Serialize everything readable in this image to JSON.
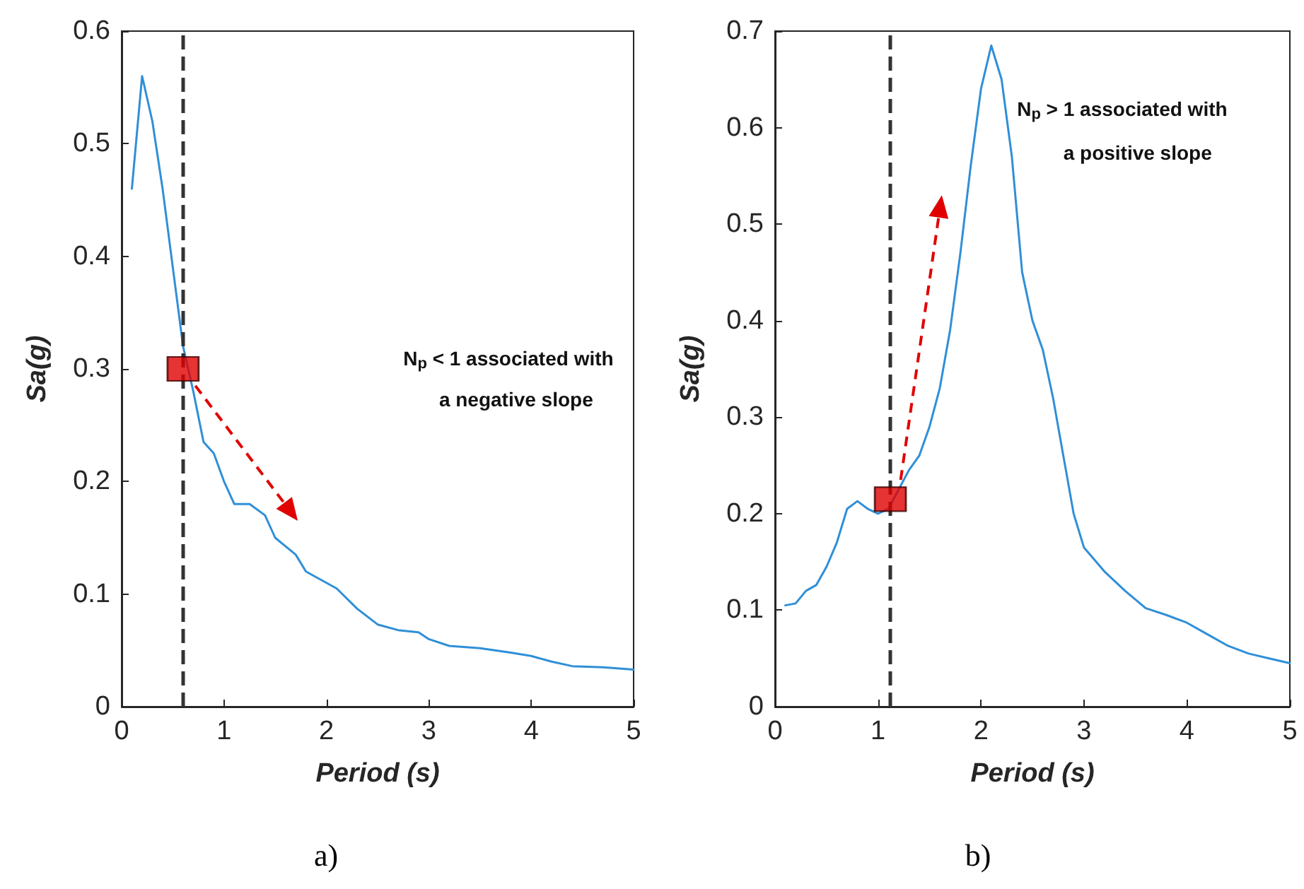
{
  "chart_data": [
    {
      "type": "line",
      "title": "a)",
      "xlabel": "Period (s)",
      "ylabel": "Sa(g)",
      "xlim": [
        0,
        5
      ],
      "xticks": [
        0,
        1,
        2,
        3,
        4,
        5
      ],
      "ylim": [
        0,
        0.6
      ],
      "yticks": [
        0,
        0.1,
        0.2,
        0.3,
        0.4,
        0.5,
        0.6
      ],
      "grid": false,
      "annotations": [
        "N$_{p}$ < 1 associated with",
        "a negative slope"
      ],
      "series": [
        {
          "type": "line",
          "color": "#2f8fd8",
          "marker": "none",
          "line_style": "solid",
          "x": [
            0.1,
            0.2,
            0.3,
            0.4,
            0.5,
            0.6,
            0.7,
            0.8,
            0.9,
            1.0,
            1.1,
            1.25,
            1.4,
            1.5,
            1.7,
            1.8,
            2.0,
            2.1,
            2.3,
            2.5,
            2.7,
            2.9,
            3.0,
            3.2,
            3.5,
            3.8,
            4.0,
            4.2,
            4.4,
            4.7,
            5.0
          ],
          "values": [
            0.46,
            0.56,
            0.52,
            0.46,
            0.39,
            0.32,
            0.28,
            0.235,
            0.225,
            0.2,
            0.18,
            0.18,
            0.17,
            0.15,
            0.135,
            0.12,
            0.11,
            0.105,
            0.087,
            0.073,
            0.068,
            0.066,
            0.06,
            0.054,
            0.052,
            0.048,
            0.045,
            0.04,
            0.036,
            0.035,
            0.033
          ]
        },
        {
          "type": "scatter",
          "color": "#e00000",
          "marker": "square",
          "x": [
            0.6
          ],
          "values": [
            0.3
          ]
        }
      ],
      "ref_lines": [
        {
          "axis": "x",
          "value": 0.6,
          "color": "#333333",
          "line_style": "dashed"
        }
      ]
    },
    {
      "type": "line",
      "title": "b)",
      "xlabel": "Period (s)",
      "ylabel": "Sa(g)",
      "xlim": [
        0,
        5
      ],
      "xticks": [
        0,
        1,
        2,
        3,
        4,
        5
      ],
      "ylim": [
        0,
        0.7
      ],
      "yticks": [
        0,
        0.1,
        0.2,
        0.3,
        0.4,
        0.5,
        0.6,
        0.7
      ],
      "grid": false,
      "annotations": [
        "N$_{p}$ > 1 associated with",
        "a positive slope"
      ],
      "series": [
        {
          "type": "line",
          "color": "#2f8fd8",
          "marker": "none",
          "line_style": "solid",
          "x": [
            0.1,
            0.2,
            0.3,
            0.4,
            0.5,
            0.6,
            0.7,
            0.8,
            0.9,
            1.0,
            1.1,
            1.2,
            1.3,
            1.4,
            1.5,
            1.6,
            1.7,
            1.8,
            1.9,
            2.0,
            2.1,
            2.2,
            2.3,
            2.4,
            2.5,
            2.6,
            2.7,
            2.8,
            2.9,
            3.0,
            3.2,
            3.4,
            3.6,
            3.8,
            4.0,
            4.2,
            4.4,
            4.6,
            4.8,
            5.0
          ],
          "values": [
            0.105,
            0.107,
            0.12,
            0.126,
            0.145,
            0.17,
            0.205,
            0.213,
            0.205,
            0.2,
            0.205,
            0.225,
            0.245,
            0.26,
            0.29,
            0.33,
            0.39,
            0.47,
            0.56,
            0.64,
            0.685,
            0.65,
            0.57,
            0.45,
            0.4,
            0.37,
            0.32,
            0.26,
            0.2,
            0.165,
            0.14,
            0.12,
            0.102,
            0.095,
            0.087,
            0.075,
            0.063,
            0.055,
            0.05,
            0.045
          ]
        },
        {
          "type": "scatter",
          "color": "#e00000",
          "marker": "square",
          "x": [
            1.12
          ],
          "values": [
            0.215
          ]
        }
      ],
      "ref_lines": [
        {
          "axis": "x",
          "value": 1.12,
          "color": "#333333",
          "line_style": "dashed"
        }
      ]
    }
  ]
}
